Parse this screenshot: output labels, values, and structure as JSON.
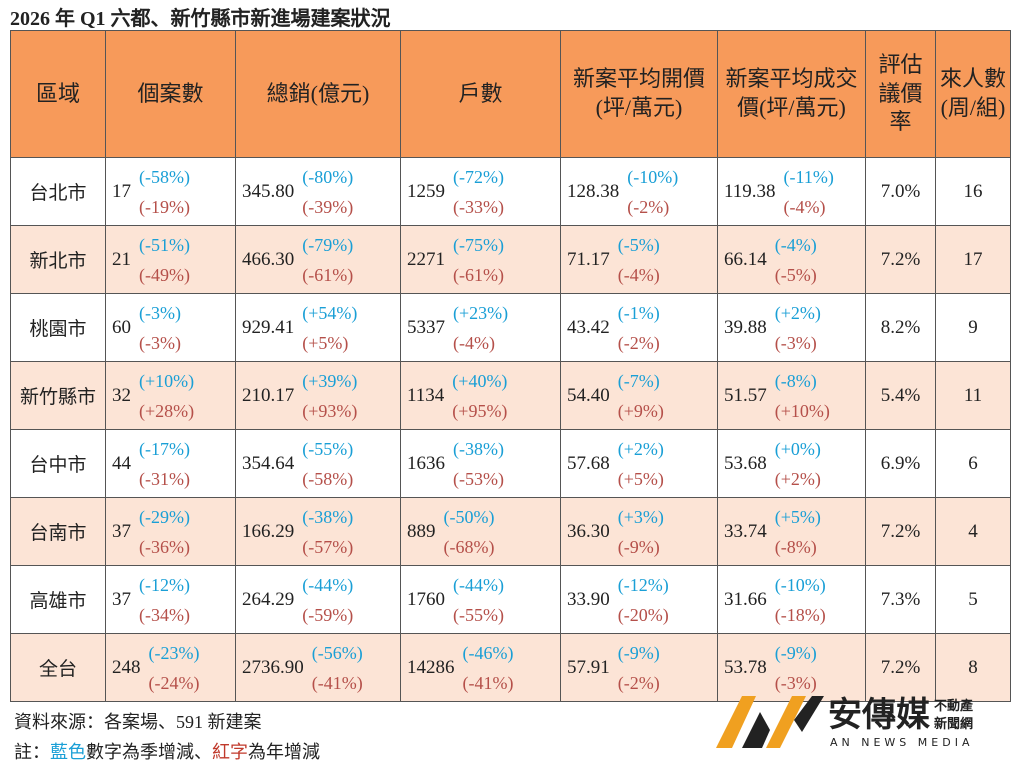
{
  "title": "2026 年 Q1 六都、新竹縣市新進場建案狀況",
  "table": {
    "header": [
      "區域",
      "個案數",
      "總銷(億元)",
      "戶數",
      "新案平均開價(坪/萬元)",
      "新案平均成交價(坪/萬元)",
      "評估議價率",
      "來人數(周/組)"
    ],
    "rows": [
      [
        "台北市",
        [
          "17",
          "(-58%)",
          "(-19%)"
        ],
        [
          "345.80",
          "(-80%)",
          "(-39%)"
        ],
        [
          "1259",
          "(-72%)",
          "(-33%)"
        ],
        [
          "128.38",
          "(-10%)",
          "(-2%)"
        ],
        [
          "119.38",
          "(-11%)",
          "(-4%)"
        ],
        "7.0%",
        "16"
      ],
      [
        "新北市",
        [
          "21",
          "(-51%)",
          "(-49%)"
        ],
        [
          "466.30",
          "(-79%)",
          "(-61%)"
        ],
        [
          "2271",
          "(-75%)",
          "(-61%)"
        ],
        [
          "71.17",
          "(-5%)",
          "(-4%)"
        ],
        [
          "66.14",
          "(-4%)",
          "(-5%)"
        ],
        "7.2%",
        "17"
      ],
      [
        "桃園市",
        [
          "60",
          "(-3%)",
          "(-3%)"
        ],
        [
          "929.41",
          "(+54%)",
          "(+5%)"
        ],
        [
          "5337",
          "(+23%)",
          "(-4%)"
        ],
        [
          "43.42",
          "(-1%)",
          "(-2%)"
        ],
        [
          "39.88",
          "(+2%)",
          "(-3%)"
        ],
        "8.2%",
        "9"
      ],
      [
        "新竹縣市",
        [
          "32",
          "(+10%)",
          "(+28%)"
        ],
        [
          "210.17",
          "(+39%)",
          "(+93%)"
        ],
        [
          "1134",
          "(+40%)",
          "(+95%)"
        ],
        [
          "54.40",
          "(-7%)",
          "(+9%)"
        ],
        [
          "51.57",
          "(-8%)",
          "(+10%)"
        ],
        "5.4%",
        "11"
      ],
      [
        "台中市",
        [
          "44",
          "(-17%)",
          "(-31%)"
        ],
        [
          "354.64",
          "(-55%)",
          "(-58%)"
        ],
        [
          "1636",
          "(-38%)",
          "(-53%)"
        ],
        [
          "57.68",
          "(+2%)",
          "(+5%)"
        ],
        [
          "53.68",
          "(+0%)",
          "(+2%)"
        ],
        "6.9%",
        "6"
      ],
      [
        "台南市",
        [
          "37",
          "(-29%)",
          "(-36%)"
        ],
        [
          "166.29",
          "(-38%)",
          "(-57%)"
        ],
        [
          "889",
          "(-50%)",
          "(-68%)"
        ],
        [
          "36.30",
          "(+3%)",
          "(-9%)"
        ],
        [
          "33.74",
          "(+5%)",
          "(-8%)"
        ],
        "7.2%",
        "4"
      ],
      [
        "高雄市",
        [
          "37",
          "(-12%)",
          "(-34%)"
        ],
        [
          "264.29",
          "(-44%)",
          "(-59%)"
        ],
        [
          "1760",
          "(-44%)",
          "(-55%)"
        ],
        [
          "33.90",
          "(-12%)",
          "(-20%)"
        ],
        [
          "31.66",
          "(-10%)",
          "(-18%)"
        ],
        "7.3%",
        "5"
      ],
      [
        "全台",
        [
          "248",
          "(-23%)",
          "(-24%)"
        ],
        [
          "2736.90",
          "(-56%)",
          "(-41%)"
        ],
        [
          "14286",
          "(-46%)",
          "(-41%)"
        ],
        [
          "57.91",
          "(-9%)",
          "(-2%)"
        ],
        [
          "53.78",
          "(-9%)",
          "(-3%)"
        ],
        "7.2%",
        "8"
      ]
    ]
  },
  "footer": {
    "source": "資料來源：各案場、591 新建案",
    "note": [
      "註：",
      "藍色",
      "數字為季增減、",
      "紅字",
      "為年增減"
    ]
  },
  "logo": {
    "name": "安傳媒",
    "sub1": "不動產",
    "sub2": "新聞網",
    "english": "AN NEWS MEDIA"
  }
}
